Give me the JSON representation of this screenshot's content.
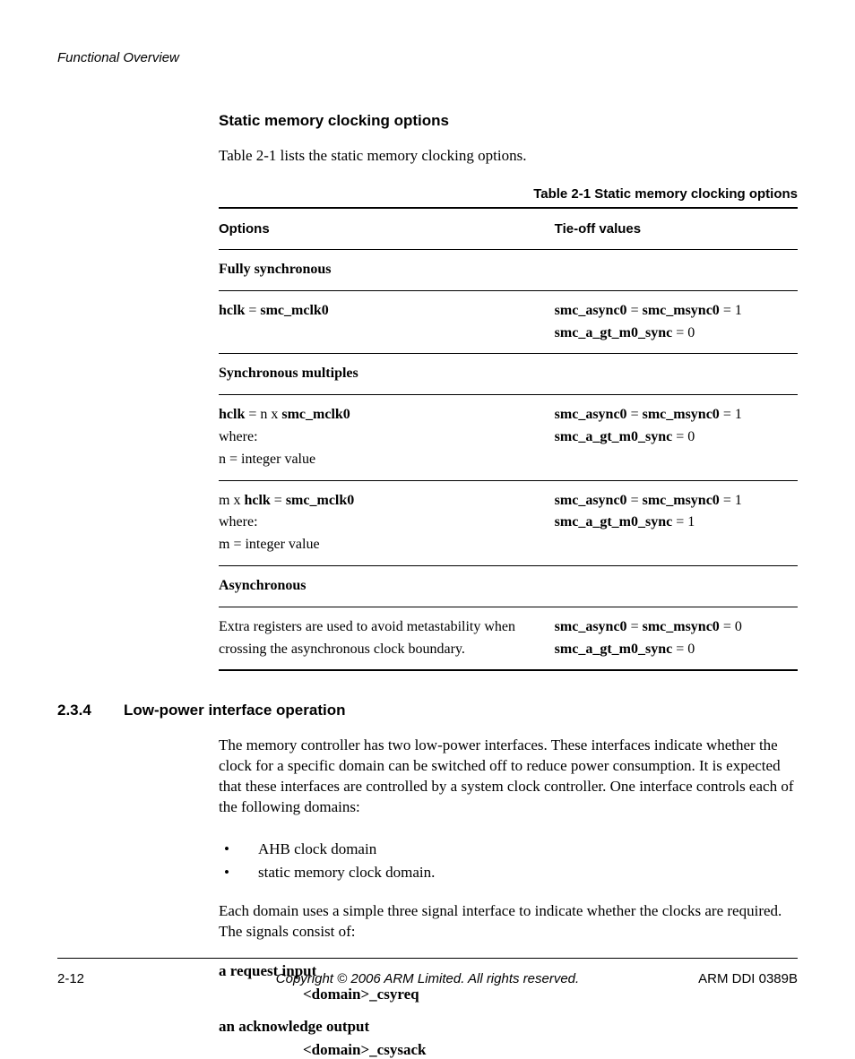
{
  "running_header": "Functional Overview",
  "section1": {
    "heading": "Static memory clocking options",
    "intro": "Table 2-1 lists the static memory clocking options.",
    "table_caption": "Table 2-1 Static memory clocking options",
    "columns": [
      "Options",
      "Tie-off values"
    ],
    "rows": [
      {
        "type": "section",
        "label": "Fully synchronous"
      },
      {
        "type": "data",
        "opt_html": "<b>hclk</b> = <b>smc_mclk0</b>",
        "tie_html": "<b>smc_async0</b> = <b>smc_msync0</b> = 1<br><b>smc_a_gt_m0_sync</b> = 0"
      },
      {
        "type": "section",
        "label": "Synchronous multiples"
      },
      {
        "type": "data",
        "opt_html": "<b>hclk</b> = n x <b>smc_mclk0</b><br>where:<br>n = integer value",
        "tie_html": "<b>smc_async0</b> = <b>smc_msync0</b> = 1<br><b>smc_a_gt_m0_sync</b> = 0"
      },
      {
        "type": "data",
        "opt_html": "m x <b>hclk</b> = <b>smc_mclk0</b><br>where:<br>m = integer value",
        "tie_html": "<b>smc_async0</b> = <b>smc_msync0</b> = 1<br><b>smc_a_gt_m0_sync</b> = 1"
      },
      {
        "type": "section",
        "label": "Asynchronous"
      },
      {
        "type": "data",
        "last": true,
        "opt_html": "Extra registers are used to avoid metastability when crossing the asynchronous clock boundary.",
        "tie_html": "<b>smc_async0</b> = <b>smc_msync0</b> = 0<br><b>smc_a_gt_m0_sync</b> = 0"
      }
    ]
  },
  "section2": {
    "number": "2.3.4",
    "title": "Low-power interface operation",
    "para1": "The memory controller has two low-power interfaces. These interfaces indicate whether the clock for a specific domain can be switched off to reduce power consumption. It is expected that these interfaces are controlled by a system clock controller. One interface controls each of the following domains:",
    "bullets": [
      "AHB clock domain",
      "static memory clock domain."
    ],
    "para2": "Each domain uses a simple three signal interface to indicate whether the clocks are required. The signals consist of:",
    "defs": [
      {
        "term": "a request input",
        "value": "<domain>_csyreq"
      },
      {
        "term": "an acknowledge output",
        "value": "<domain>_csysack"
      }
    ]
  },
  "footer": {
    "left": "2-12",
    "center": "Copyright © 2006 ARM Limited. All rights reserved.",
    "right": "ARM DDI 0389B"
  }
}
